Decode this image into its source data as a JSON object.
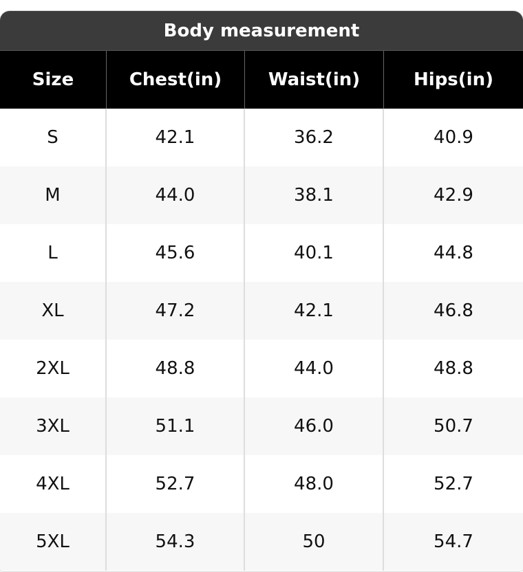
{
  "table": {
    "title": "Body measurement",
    "header": [
      "Size",
      "Chest(in)",
      "Waist(in)",
      "Hips(in)"
    ],
    "rows": [
      [
        "S",
        "42.1",
        "36.2",
        "40.9"
      ],
      [
        "M",
        "44.0",
        "38.1",
        "42.9"
      ],
      [
        "L",
        "45.6",
        "40.1",
        "44.8"
      ],
      [
        "XL",
        "47.2",
        "42.1",
        "46.8"
      ],
      [
        "2XL",
        "48.8",
        "44.0",
        "48.8"
      ],
      [
        "3XL",
        "51.1",
        "46.0",
        "50.7"
      ],
      [
        "4XL",
        "52.7",
        "48.0",
        "52.7"
      ],
      [
        "5XL",
        "54.3",
        "50",
        "54.7"
      ]
    ]
  }
}
